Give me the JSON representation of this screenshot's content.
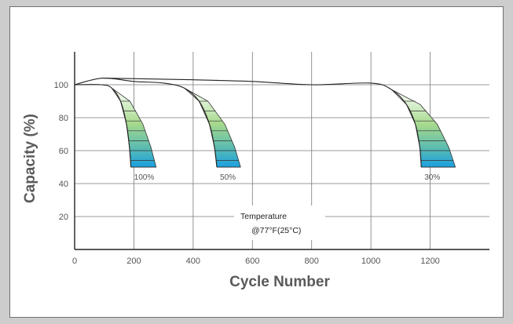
{
  "chart_data": {
    "type": "line",
    "title": "",
    "xlabel": "Cycle Number",
    "ylabel": "Capacity   (%)",
    "xlim": [
      0,
      1400
    ],
    "ylim": [
      0,
      120
    ],
    "x_ticks": [
      0,
      200,
      400,
      600,
      800,
      1000,
      1200
    ],
    "y_ticks": [
      20,
      40,
      60,
      80,
      100
    ],
    "grid": true,
    "annotation": {
      "line1": "Temperature",
      "line2": "@77°F(25°C)"
    },
    "series": [
      {
        "name": "100%",
        "points": [
          [
            0,
            100
          ],
          [
            90,
            100
          ],
          [
            125,
            98
          ],
          [
            155,
            90
          ],
          [
            175,
            76
          ],
          [
            185,
            62
          ],
          [
            190,
            50
          ]
        ],
        "spread": [
          [
            115,
            0
          ],
          [
            125,
            12
          ],
          [
            140,
            28
          ],
          [
            155,
            48
          ],
          [
            170,
            66
          ],
          [
            180,
            80
          ]
        ]
      },
      {
        "name": "50%",
        "points": [
          [
            0,
            100
          ],
          [
            95,
            104
          ],
          [
            200,
            102
          ],
          [
            300,
            101
          ],
          [
            370,
            98
          ],
          [
            420,
            90
          ],
          [
            455,
            76
          ],
          [
            472,
            62
          ],
          [
            480,
            50
          ]
        ],
        "spread": [
          [
            390,
            0
          ],
          [
            405,
            14
          ],
          [
            425,
            30
          ],
          [
            440,
            46
          ],
          [
            460,
            64
          ],
          [
            470,
            78
          ]
        ]
      },
      {
        "name": "30%",
        "points": [
          [
            95,
            104
          ],
          [
            400,
            103
          ],
          [
            600,
            102
          ],
          [
            800,
            100
          ],
          [
            1000,
            101
          ],
          [
            1070,
            97
          ],
          [
            1120,
            88
          ],
          [
            1150,
            76
          ],
          [
            1165,
            62
          ],
          [
            1170,
            50
          ]
        ],
        "spread": [
          [
            1020,
            0
          ],
          [
            1050,
            20
          ],
          [
            1080,
            42
          ],
          [
            1105,
            64
          ],
          [
            1120,
            88
          ],
          [
            1125,
            110
          ]
        ]
      }
    ]
  }
}
